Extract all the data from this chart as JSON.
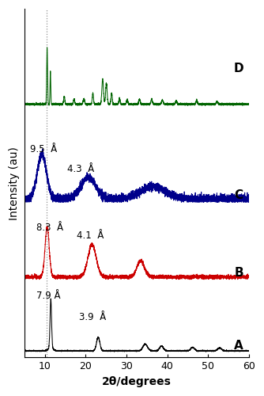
{
  "xlabel": "2θ/degrees",
  "ylabel": "Intensity (au)",
  "xlim": [
    5,
    60
  ],
  "dashed_line_x": 10.5,
  "labels": [
    "A",
    "B",
    "C",
    "D"
  ],
  "colors": {
    "A": "#000000",
    "B": "#cc0000",
    "C": "#00008B",
    "D": "#006400"
  },
  "scale": {
    "A": 0.55,
    "B": 0.55,
    "C": 0.55,
    "D": 0.6
  },
  "offsets": {
    "A": 0.0,
    "B": 0.75,
    "C": 1.55,
    "D": 2.55
  },
  "xticks": [
    10,
    20,
    30,
    40,
    50,
    60
  ],
  "tick_fontsize": 9,
  "label_fontsize": 10,
  "series_label_fontsize": 11,
  "annotation_fontsize": 8.5
}
